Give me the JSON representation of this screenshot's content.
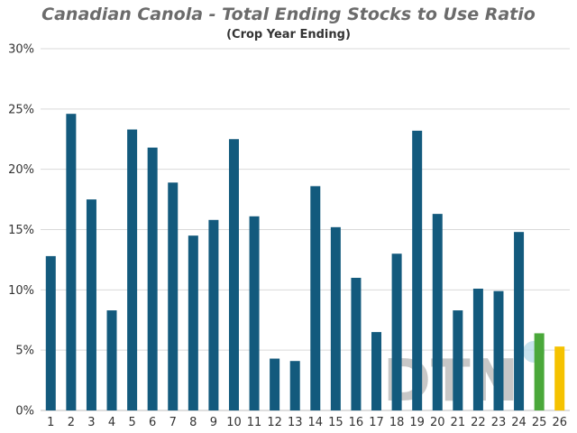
{
  "chart_data": {
    "type": "bar",
    "title": "Canadian Canola - Total Ending Stocks to Use Ratio",
    "subtitle": "(Crop Year Ending)",
    "xlabel": "",
    "ylabel": "",
    "ylim": [
      0,
      30
    ],
    "y_ticks": [
      "0%",
      "5%",
      "10%",
      "15%",
      "20%",
      "25%",
      "30%"
    ],
    "y_tick_values": [
      0,
      5,
      10,
      15,
      20,
      25,
      30
    ],
    "grid": true,
    "categories": [
      "1",
      "2",
      "3",
      "4",
      "5",
      "6",
      "7",
      "8",
      "9",
      "10",
      "11",
      "12",
      "13",
      "14",
      "15",
      "16",
      "17",
      "18",
      "19",
      "20",
      "21",
      "22",
      "23",
      "24",
      "25",
      "26"
    ],
    "values": [
      12.8,
      24.6,
      17.5,
      8.3,
      23.3,
      21.8,
      18.9,
      14.5,
      15.8,
      22.5,
      16.1,
      4.3,
      4.1,
      18.6,
      15.2,
      11.0,
      6.5,
      13.0,
      23.2,
      16.3,
      8.3,
      10.1,
      9.9,
      14.8,
      6.4,
      5.3
    ],
    "colors": [
      "#135a7d",
      "#135a7d",
      "#135a7d",
      "#135a7d",
      "#135a7d",
      "#135a7d",
      "#135a7d",
      "#135a7d",
      "#135a7d",
      "#135a7d",
      "#135a7d",
      "#135a7d",
      "#135a7d",
      "#135a7d",
      "#135a7d",
      "#135a7d",
      "#135a7d",
      "#135a7d",
      "#135a7d",
      "#135a7d",
      "#135a7d",
      "#135a7d",
      "#135a7d",
      "#135a7d",
      "#4aa83a",
      "#f5c200"
    ],
    "watermark": "DTN"
  }
}
